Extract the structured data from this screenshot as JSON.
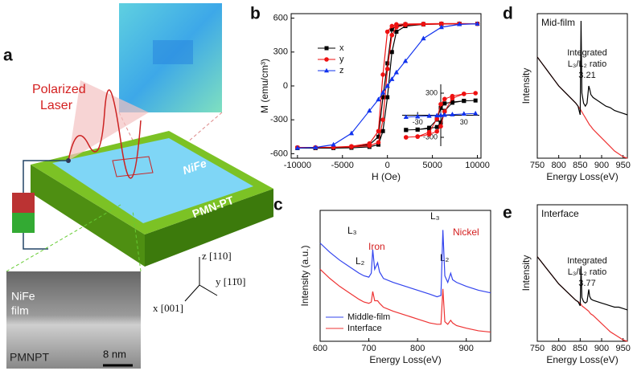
{
  "panels": {
    "labels": [
      "a",
      "b",
      "c",
      "d",
      "e"
    ],
    "a": {
      "laser": [
        "Polarized",
        "Laser"
      ],
      "layer": "NiFe",
      "substrate": "PMN-PT",
      "tem_film": [
        "NiFe",
        "film"
      ],
      "tem_sub": "PMNPT",
      "scale": "8 nm",
      "axes": [
        "z [110]",
        "y [11̄0]",
        "x [001]"
      ]
    },
    "d_note": [
      "Integrated",
      "L₃/L₂ ratio",
      "3.21"
    ],
    "e_note": [
      "Integrated",
      "L₃/L₂ ratio",
      "3.77"
    ],
    "c_notes": [
      "L₃",
      "L₂",
      "Iron",
      "L₃",
      "L₂",
      "Nickel"
    ]
  },
  "chart_data": [
    {
      "type": "line",
      "x_label": "H (Oe)",
      "y_label": "M (emu/cm³)",
      "xlim": [
        -10700,
        10400
      ],
      "ylim": [
        -640,
        640
      ],
      "xticks": [
        -10000,
        -5000,
        0,
        5000,
        10000
      ],
      "yticks": [
        -600,
        -300,
        0,
        300,
        600
      ],
      "legend": "upper left",
      "x": [
        -10000,
        -8000,
        -6000,
        -4000,
        -2000,
        -1000,
        -500,
        0,
        500,
        1000,
        2000,
        4000,
        6000,
        8000,
        10000,
        8000,
        6000,
        4000,
        2000,
        1000,
        500,
        0,
        -500,
        -1000,
        -2000,
        -4000,
        -6000,
        -8000,
        -10000
      ],
      "series": [
        {
          "name": "x",
          "color": "#000000",
          "marker": "square",
          "values": [
            -550,
            -550,
            -550,
            -548,
            -540,
            -520,
            -400,
            -100,
            300,
            480,
            530,
            545,
            548,
            550,
            550,
            550,
            550,
            548,
            545,
            530,
            500,
            200,
            -100,
            -450,
            -520,
            -540,
            -548,
            -550,
            -550
          ]
        },
        {
          "name": "y",
          "color": "#ee1111",
          "marker": "circle",
          "values": [
            -545,
            -545,
            -543,
            -540,
            -530,
            -500,
            -300,
            150,
            450,
            520,
            540,
            545,
            548,
            550,
            550,
            552,
            552,
            550,
            548,
            545,
            530,
            480,
            100,
            -400,
            -510,
            -535,
            -543,
            -545,
            -545
          ]
        },
        {
          "name": "z",
          "color": "#1133ee",
          "marker": "triangle",
          "values": [
            -550,
            -545,
            -520,
            -420,
            -220,
            -120,
            -60,
            0,
            60,
            120,
            220,
            420,
            520,
            545,
            550,
            545,
            520,
            420,
            220,
            120,
            60,
            0,
            -60,
            -120,
            -220,
            -420,
            -520,
            -545,
            -550
          ]
        }
      ]
    },
    {
      "type": "line",
      "inset": true,
      "xlim": [
        -50,
        50
      ],
      "ylim": [
        -420,
        420
      ],
      "xticks": [
        -30,
        30
      ],
      "yticks": [
        300,
        -300
      ],
      "x": [
        -45,
        -30,
        -15,
        -5,
        0,
        5,
        15,
        30,
        45,
        30,
        15,
        5,
        0,
        -5,
        -15,
        -30,
        -45
      ],
      "series": [
        {
          "color": "#000000",
          "marker": "square",
          "values": [
            -200,
            -195,
            -180,
            -160,
            -100,
            60,
            170,
            195,
            200,
            195,
            180,
            160,
            100,
            -60,
            -170,
            -195,
            -200
          ]
        },
        {
          "color": "#ee1111",
          "marker": "circle",
          "values": [
            -300,
            -290,
            -260,
            -220,
            -150,
            50,
            230,
            290,
            300,
            290,
            260,
            220,
            150,
            -50,
            -230,
            -290,
            -300
          ]
        },
        {
          "color": "#1133ee",
          "marker": "triangle",
          "values": [
            -25,
            -18,
            -10,
            -4,
            0,
            4,
            10,
            18,
            25,
            18,
            10,
            4,
            0,
            -4,
            -10,
            -18,
            -25
          ]
        }
      ]
    },
    {
      "type": "line",
      "x_label": "Energy Loss(eV)",
      "y_label": "Intensity (a.u.)",
      "xlim": [
        600,
        950
      ],
      "ylim": [
        0,
        100
      ],
      "xticks": [
        600,
        700,
        800,
        900
      ],
      "legend": "lower left",
      "x": [
        600,
        620,
        640,
        660,
        680,
        690,
        700,
        705,
        708,
        712,
        718,
        722,
        730,
        750,
        775,
        800,
        825,
        840,
        848,
        852,
        856,
        862,
        868,
        872,
        880,
        900,
        925,
        950
      ],
      "series": [
        {
          "name": "Middle-film",
          "color": "#3344ee",
          "values": [
            75,
            68,
            62,
            57,
            52,
            50,
            49,
            52,
            70,
            55,
            60,
            53,
            48,
            45,
            42,
            39,
            36,
            34,
            35,
            85,
            50,
            45,
            52,
            47,
            45,
            42,
            39,
            37
          ]
        },
        {
          "name": "Interface",
          "color": "#ee3333",
          "values": [
            55,
            48,
            42,
            37,
            32,
            30,
            29,
            30,
            38,
            31,
            31,
            29,
            26,
            23,
            20,
            17,
            14,
            13,
            13,
            40,
            15,
            13,
            16,
            14,
            12,
            10,
            8,
            7
          ]
        }
      ]
    },
    {
      "type": "line",
      "title": "Mid-film",
      "x_label": "Energy Loss(eV)",
      "y_label": "Intensity",
      "xlim": [
        750,
        960
      ],
      "ylim": [
        0,
        100
      ],
      "xticks": [
        750,
        800,
        850,
        900,
        950
      ],
      "x": [
        750,
        760,
        770,
        780,
        790,
        800,
        810,
        820,
        830,
        840,
        845,
        850,
        852,
        854,
        858,
        862,
        866,
        870,
        872,
        875,
        880,
        890,
        900,
        910,
        920,
        930,
        940,
        950,
        960
      ],
      "series": [
        {
          "color": "#ee3333",
          "values": [
            70,
            66,
            62,
            58,
            54,
            50,
            47,
            44,
            41,
            38,
            36,
            34,
            33,
            32,
            30,
            28,
            26,
            24,
            23,
            22,
            20,
            17,
            14,
            11,
            8,
            5,
            3,
            1,
            0
          ]
        },
        {
          "color": "#000000",
          "values": [
            70,
            66,
            62,
            58,
            54,
            50,
            47,
            44,
            41,
            38,
            36,
            30,
            95,
            45,
            38,
            36,
            38,
            50,
            48,
            44,
            42,
            40,
            38,
            36,
            35,
            33,
            32,
            31,
            30
          ]
        }
      ]
    },
    {
      "type": "line",
      "title": "Interface",
      "x_label": "Energy Loss(eV)",
      "y_label": "Intensity",
      "xlim": [
        750,
        960
      ],
      "ylim": [
        0,
        100
      ],
      "xticks": [
        750,
        800,
        850,
        900,
        950
      ],
      "x": [
        750,
        760,
        770,
        780,
        790,
        800,
        810,
        820,
        830,
        840,
        845,
        850,
        852,
        854,
        858,
        862,
        866,
        870,
        872,
        875,
        880,
        890,
        900,
        910,
        920,
        930,
        940,
        950,
        960
      ],
      "series": [
        {
          "color": "#ee3333",
          "values": [
            62,
            58,
            54,
            50,
            46,
            42,
            39,
            36,
            33,
            30,
            29,
            28,
            27,
            26,
            25,
            24,
            23,
            22,
            21,
            20,
            19,
            16,
            13,
            10,
            7,
            5,
            3,
            1,
            0
          ]
        },
        {
          "color": "#000000",
          "values": [
            62,
            58,
            54,
            50,
            46,
            42,
            39,
            36,
            33,
            30,
            29,
            26,
            55,
            32,
            29,
            28,
            29,
            38,
            33,
            31,
            30,
            29,
            28,
            27,
            26,
            25,
            25,
            24,
            23
          ]
        }
      ]
    }
  ]
}
